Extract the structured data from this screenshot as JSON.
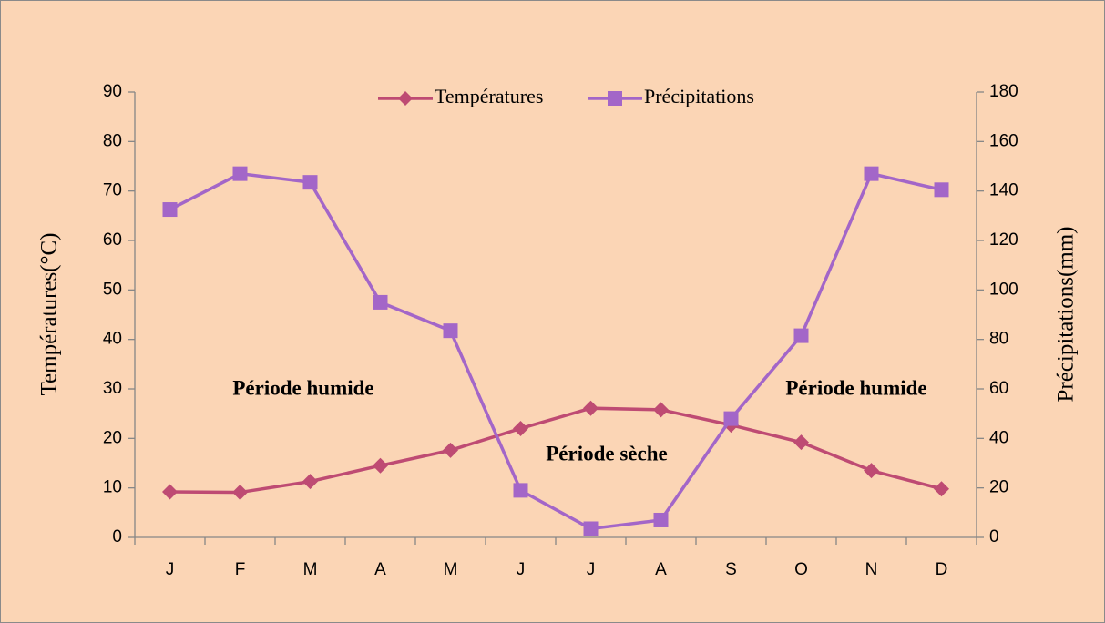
{
  "chart_data": {
    "type": "line",
    "categories": [
      "J",
      "F",
      "M",
      "A",
      "M",
      "J",
      "J",
      "A",
      "S",
      "O",
      "N",
      "D"
    ],
    "series": [
      {
        "name": "Températures",
        "color": "#be4b73",
        "marker": "diamond",
        "values": [
          9.2,
          9.1,
          11.3,
          14.5,
          17.6,
          22,
          26.1,
          25.8,
          22.7,
          19.2,
          13.5,
          9.8
        ]
      },
      {
        "name": "Précipitations",
        "color": "#a366c8",
        "marker": "square",
        "axis": "y2",
        "values": [
          132.5,
          147,
          143.5,
          95,
          83.5,
          19,
          3.5,
          7,
          48,
          81.5,
          147,
          140.5
        ]
      }
    ],
    "ylabel": "Températures(°C)",
    "y2label": "Précipitations(mm)",
    "ylim": [
      0,
      90
    ],
    "yticks": [
      0,
      10,
      20,
      30,
      40,
      50,
      60,
      70,
      80,
      90
    ],
    "y2lim": [
      0,
      180
    ],
    "y2ticks": [
      0,
      20,
      40,
      60,
      80,
      100,
      120,
      140,
      160,
      180
    ],
    "legend": "top",
    "annotations": [
      "Période humide",
      "Période sèche",
      "Période humide"
    ]
  }
}
